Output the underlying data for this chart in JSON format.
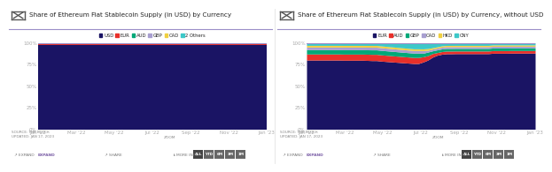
{
  "chart1": {
    "title": "Share of Ethereum Fiat Stablecoin Supply (in USD) by Currency",
    "legend": [
      "USD",
      "EUR",
      "AUD",
      "GBP",
      "CAD",
      "2 Others"
    ],
    "legend_colors": [
      "#1a1464",
      "#e8302a",
      "#00a878",
      "#a89fd0",
      "#f0d040",
      "#3dc8c8"
    ],
    "x_labels": [
      "Jan '22",
      "Mar '22",
      "May '22",
      "Jul '22",
      "Sep '22",
      "Nov '22",
      "Jan '23"
    ],
    "source": "SOURCE: THE BLOCK\nUPDATED: JAN 17, 2023",
    "n_points": 50,
    "data": {
      "USD": [
        97.5,
        97.5,
        97.5,
        97.5,
        97.5,
        97.5,
        97.5,
        97.5,
        97.5,
        97.5,
        97.5,
        97.5,
        97.5,
        97.5,
        97.5,
        97.5,
        97.5,
        97.5,
        97.5,
        97.5,
        97.5,
        97.5,
        97.5,
        97.5,
        97.5,
        97.5,
        97.5,
        97.5,
        97.5,
        97.5,
        97.5,
        97.5,
        97.5,
        97.5,
        97.5,
        97.5,
        97.5,
        97.5,
        97.5,
        97.5,
        97.5,
        97.5,
        97.5,
        97.5,
        97.5,
        97.5,
        97.5,
        97.5,
        97.5,
        97.5
      ],
      "EUR": [
        1.0,
        1.0,
        1.0,
        1.0,
        1.0,
        1.0,
        1.0,
        1.0,
        1.0,
        1.0,
        1.0,
        1.0,
        1.0,
        1.0,
        1.0,
        1.0,
        1.0,
        1.0,
        1.0,
        1.0,
        1.0,
        1.0,
        1.0,
        1.0,
        1.0,
        1.0,
        1.0,
        1.0,
        1.0,
        1.0,
        1.0,
        1.0,
        1.0,
        1.0,
        1.0,
        1.0,
        1.0,
        1.0,
        1.0,
        1.0,
        1.0,
        1.0,
        1.0,
        1.0,
        1.0,
        1.0,
        1.0,
        1.0,
        1.0,
        1.0
      ],
      "AUD": [
        0.3,
        0.3,
        0.3,
        0.3,
        0.3,
        0.3,
        0.3,
        0.3,
        0.3,
        0.3,
        0.3,
        0.3,
        0.3,
        0.3,
        0.3,
        0.3,
        0.3,
        0.3,
        0.3,
        0.3,
        0.3,
        0.3,
        0.3,
        0.3,
        0.3,
        0.3,
        0.3,
        0.3,
        0.3,
        0.3,
        0.3,
        0.3,
        0.3,
        0.3,
        0.3,
        0.3,
        0.3,
        0.3,
        0.3,
        0.3,
        0.3,
        0.3,
        0.3,
        0.3,
        0.3,
        0.3,
        0.3,
        0.3,
        0.3,
        0.3
      ],
      "GBP": [
        0.4,
        0.4,
        0.4,
        0.4,
        0.4,
        0.4,
        0.4,
        0.4,
        0.4,
        0.4,
        0.4,
        0.4,
        0.4,
        0.4,
        0.4,
        0.4,
        0.4,
        0.4,
        0.4,
        0.4,
        0.4,
        0.4,
        0.4,
        0.4,
        0.4,
        0.4,
        0.4,
        0.4,
        0.4,
        0.4,
        0.4,
        0.4,
        0.4,
        0.4,
        0.4,
        0.4,
        0.4,
        0.4,
        0.4,
        0.4,
        0.4,
        0.4,
        0.4,
        0.4,
        0.4,
        0.4,
        0.4,
        0.4,
        0.4,
        0.4
      ],
      "CAD": [
        0.2,
        0.2,
        0.2,
        0.2,
        0.2,
        0.2,
        0.2,
        0.2,
        0.2,
        0.2,
        0.2,
        0.2,
        0.2,
        0.2,
        0.2,
        0.2,
        0.2,
        0.2,
        0.2,
        0.2,
        0.2,
        0.2,
        0.2,
        0.2,
        0.2,
        0.2,
        0.2,
        0.2,
        0.2,
        0.2,
        0.2,
        0.2,
        0.2,
        0.2,
        0.2,
        0.2,
        0.2,
        0.2,
        0.2,
        0.2,
        0.2,
        0.2,
        0.2,
        0.2,
        0.2,
        0.2,
        0.2,
        0.2,
        0.2,
        0.2
      ],
      "2 Others": [
        0.6,
        0.6,
        0.6,
        0.6,
        0.6,
        0.6,
        0.6,
        0.6,
        0.6,
        0.6,
        0.6,
        0.6,
        0.6,
        0.6,
        0.6,
        0.6,
        0.6,
        0.6,
        0.6,
        0.6,
        0.6,
        0.6,
        0.6,
        0.6,
        0.6,
        0.6,
        0.6,
        0.6,
        0.6,
        0.6,
        0.6,
        0.6,
        0.6,
        0.6,
        0.6,
        0.6,
        0.6,
        0.6,
        0.6,
        0.6,
        0.6,
        0.6,
        0.6,
        0.6,
        0.6,
        0.6,
        0.6,
        0.6,
        0.6,
        0.6
      ]
    }
  },
  "chart2": {
    "title": "Share of Ethereum Fiat Stablecoin Supply (in USD) by Currency, without USD",
    "legend": [
      "EUR",
      "AUD",
      "GBP",
      "CAD",
      "HKD",
      "CNY"
    ],
    "legend_colors": [
      "#1a1464",
      "#e8302a",
      "#00a878",
      "#a89fd0",
      "#f0d040",
      "#3dc8c8"
    ],
    "x_labels": [
      "Jan '22",
      "Mar '22",
      "May '22",
      "Jul '22",
      "Sep '22",
      "Nov '22",
      "Jan '23"
    ],
    "source": "SOURCE: THE BLOCK\nUPDATED: JAN 17, 2023",
    "n_points": 50,
    "data": {
      "EUR": [
        80,
        80,
        80,
        80,
        80,
        80,
        80,
        80,
        79,
        79,
        79,
        79,
        79,
        78,
        77,
        77,
        76,
        76,
        76,
        76,
        76,
        76,
        76,
        76,
        76,
        77,
        78,
        80,
        83,
        85,
        86,
        86,
        87,
        87,
        87,
        87,
        87,
        87,
        87,
        87,
        87,
        87,
        87,
        87,
        88,
        88,
        88,
        88,
        88,
        88
      ],
      "AUD": [
        7,
        7,
        7,
        7,
        7,
        7,
        7,
        7,
        7,
        7,
        7,
        7,
        7,
        7,
        7,
        7,
        7,
        7,
        7,
        7,
        7,
        7,
        7,
        7,
        7,
        6,
        5,
        4,
        3,
        3,
        3,
        3,
        3,
        3,
        3,
        3,
        3,
        3,
        3,
        3,
        3,
        3,
        3,
        3,
        3,
        3,
        3,
        3,
        3,
        3
      ],
      "GBP": [
        5,
        5,
        5,
        5,
        5,
        5,
        5,
        5,
        5,
        5,
        5,
        5,
        5,
        5,
        5,
        5,
        5,
        5,
        5,
        5,
        5,
        5,
        5,
        5,
        5,
        4,
        4,
        3,
        3,
        3,
        3,
        3,
        3,
        3,
        3,
        3,
        3,
        3,
        3,
        3,
        3,
        3,
        3,
        3,
        3,
        3,
        3,
        3,
        3,
        3
      ],
      "CAD": [
        3,
        3,
        3,
        3,
        3,
        3,
        3,
        3,
        3,
        3,
        3,
        3,
        3,
        3,
        3,
        3,
        3,
        3,
        3,
        3,
        3,
        3,
        3,
        3,
        3,
        3,
        2,
        2,
        2,
        2,
        2,
        2,
        2,
        2,
        2,
        2,
        2,
        2,
        2,
        2,
        2,
        2,
        2,
        2,
        2,
        2,
        2,
        2,
        2,
        2
      ],
      "HKD": [
        2,
        2,
        2,
        2,
        2,
        2,
        2,
        2,
        2,
        2,
        2,
        2,
        2,
        2,
        2,
        2,
        2,
        2,
        2,
        2,
        2,
        2,
        2,
        2,
        2,
        2,
        2,
        1.5,
        1.5,
        1.5,
        1.5,
        1.5,
        1.5,
        1.5,
        1.5,
        1.5,
        1.5,
        1.5,
        1.5,
        1.5,
        1.5,
        1.5,
        1.5,
        1.5,
        1.5,
        1.5,
        1.5,
        1.5,
        1.5,
        1.5
      ],
      "CNY": [
        3,
        3,
        3,
        3,
        3,
        3,
        3,
        3,
        3,
        3,
        3,
        3,
        3,
        3,
        3,
        3,
        3.5,
        4,
        4.5,
        5,
        5.5,
        6,
        6.5,
        7,
        7,
        7,
        6.5,
        5.5,
        4.5,
        3.5,
        3,
        3,
        3,
        3,
        3,
        3,
        3,
        3,
        3,
        3,
        2.5,
        2.5,
        2.5,
        2.5,
        2.5,
        2.5,
        2.5,
        2.5,
        2.5,
        2.5
      ]
    }
  },
  "bg_color": "#ffffff",
  "plot_bg": "#f9f9f9",
  "title_color": "#222222",
  "axis_color": "#aaaaaa",
  "source_color": "#888888",
  "footer_color": "#777777",
  "accent_line": "#9b8fc8",
  "separator_color": "#dddddd"
}
